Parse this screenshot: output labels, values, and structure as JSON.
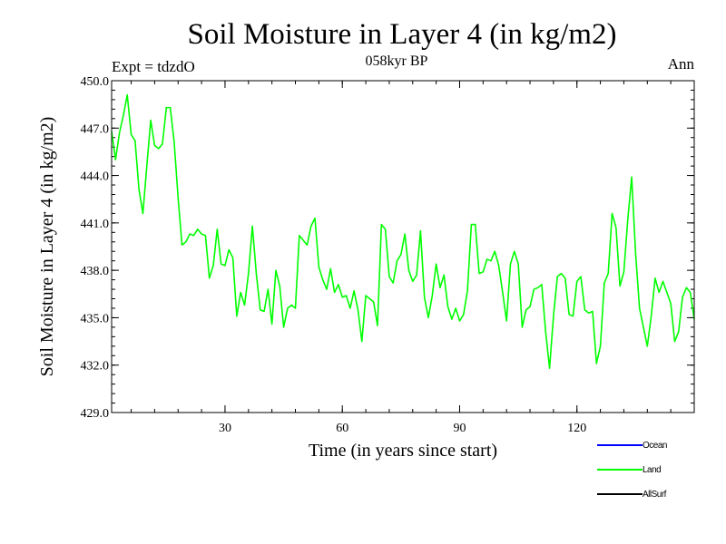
{
  "chart_data": {
    "type": "line",
    "title": "Soil Moisture in Layer 4 (in kg/m2)",
    "subtitle": "058kyr BP",
    "experiment": "Expt = tdzdO",
    "season": "Ann",
    "xlabel": "Time (in years since start)",
    "ylabel": "Soil Moisture in Layer 4 (in kg/m2)",
    "xlim": [
      1,
      150
    ],
    "ylim": [
      429,
      450
    ],
    "xticks": [
      30,
      60,
      90,
      120
    ],
    "xtick_labels": [
      "30",
      "60",
      "90",
      "120"
    ],
    "yticks": [
      429,
      432,
      435,
      438,
      441,
      444,
      447,
      450
    ],
    "ytick_labels": [
      "429.0",
      "432.0",
      "435.0",
      "438.0",
      "441.0",
      "444.0",
      "447.0",
      "450.0"
    ],
    "legend": [
      {
        "name": "Ocean",
        "color": "#0000ff"
      },
      {
        "name": "Land",
        "color": "#00ff00"
      },
      {
        "name": "AllSurf",
        "color": "#000000"
      }
    ],
    "series": [
      {
        "name": "Land",
        "color": "#00ff00",
        "x_start": 1,
        "x_step": 1,
        "values": [
          446.8,
          445.0,
          446.7,
          447.8,
          449.1,
          446.6,
          446.2,
          443.1,
          441.6,
          444.6,
          447.5,
          445.9,
          445.7,
          446.0,
          448.3,
          448.3,
          446.1,
          442.6,
          439.6,
          439.8,
          440.3,
          440.2,
          440.6,
          440.3,
          440.2,
          437.5,
          438.3,
          440.6,
          438.4,
          438.3,
          439.3,
          438.8,
          435.1,
          436.6,
          435.8,
          437.8,
          440.8,
          437.8,
          435.5,
          435.4,
          436.8,
          434.6,
          438.0,
          437.0,
          434.4,
          435.6,
          435.8,
          435.6,
          440.2,
          439.9,
          439.6,
          440.8,
          441.3,
          438.2,
          437.4,
          436.8,
          438.1,
          436.6,
          437.1,
          436.3,
          436.4,
          435.6,
          436.7,
          435.5,
          433.5,
          436.4,
          436.2,
          436.0,
          434.5,
          440.9,
          440.6,
          437.6,
          437.2,
          438.6,
          439.0,
          440.3,
          438.0,
          437.3,
          437.7,
          440.5,
          436.3,
          435.0,
          436.4,
          438.4,
          436.9,
          437.7,
          435.7,
          434.9,
          435.6,
          434.8,
          435.2,
          436.7,
          440.9,
          440.9,
          437.8,
          437.9,
          438.7,
          438.6,
          439.2,
          438.3,
          436.6,
          434.8,
          438.4,
          439.2,
          438.4,
          434.4,
          435.5,
          435.7,
          436.8,
          436.9,
          437.1,
          434.1,
          431.8,
          435.1,
          437.6,
          437.8,
          437.5,
          435.2,
          435.1,
          437.3,
          437.6,
          435.5,
          435.3,
          435.4,
          432.1,
          433.2,
          437.2,
          437.8,
          441.6,
          440.7,
          437.0,
          437.9,
          441.2,
          443.9,
          439.1,
          435.6,
          434.4,
          433.2,
          435.1,
          437.5,
          436.6,
          437.3,
          436.6,
          435.9,
          433.5,
          434.1,
          436.3,
          436.9,
          436.6,
          434.9
        ]
      }
    ]
  }
}
